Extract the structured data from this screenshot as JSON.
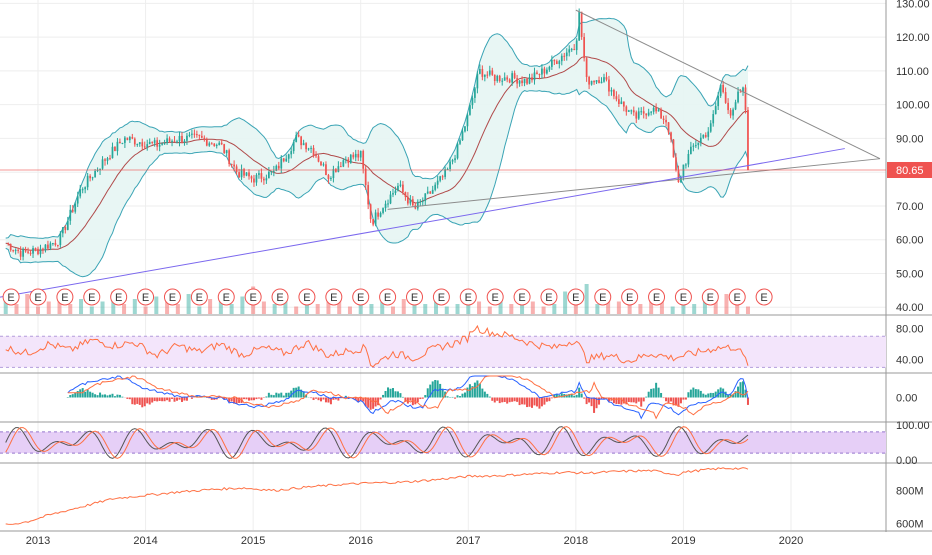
{
  "colors": {
    "up": "#26a69a",
    "down": "#ef5350",
    "bollinger_band": "#3aa4b5",
    "bollinger_fill": "#e6f5f3",
    "basis": "#b04a4a",
    "trendline_gray": "#8c8c8c",
    "trendline_purple": "#7b68ee",
    "price_line": "#ef5350",
    "rsi_line": "#ff7043",
    "rsi_band_fill": "#f3e5fb",
    "stoch_band_fill": "#e6cff7",
    "stoch_k": "#555555",
    "stoch_d": "#ff7043",
    "obv_line": "#ff7043",
    "grid": "#eeeeee",
    "pane_border": "#999999"
  },
  "chart_data": [
    {
      "type": "line",
      "pane": "price",
      "x_ticks": [
        "2013",
        "2014",
        "2015",
        "2016",
        "2017",
        "2018",
        "2019",
        "2020"
      ],
      "y_ticks": [
        "40.00",
        "50.00",
        "60.00",
        "70.00",
        "80.00",
        "90.00",
        "100.00",
        "110.00",
        "120.00",
        "130.00"
      ],
      "ylim": [
        38,
        131
      ],
      "last_price": "80.65",
      "series": [
        {
          "values_x": [
            2012.7,
            2012.85,
            2013.0,
            2013.2,
            2013.4,
            2013.6,
            2013.8,
            2013.95,
            2014.1,
            2014.3,
            2014.5,
            2014.7,
            2014.85,
            2015.0,
            2015.2,
            2015.4,
            2015.55,
            2015.7,
            2015.85,
            2016.0,
            2016.1,
            2016.2,
            2016.35,
            2016.5,
            2016.65,
            2016.8,
            2016.9,
            2017.0,
            2017.1,
            2017.25,
            2017.4,
            2017.55,
            2017.7,
            2017.85,
            2018.0,
            2018.03,
            2018.1,
            2018.25,
            2018.4,
            2018.55,
            2018.7,
            2018.85,
            2018.95,
            2019.0,
            2019.1,
            2019.25,
            2019.35,
            2019.45,
            2019.52,
            2019.57,
            2019.6
          ],
          "values_y": [
            59,
            56,
            57,
            60,
            75,
            83,
            90,
            89,
            88,
            90,
            90,
            88,
            80,
            78,
            80,
            90,
            87,
            79,
            84,
            85,
            65,
            70,
            76,
            69,
            74,
            80,
            87,
            97,
            110,
            108,
            108,
            107,
            110,
            114,
            118,
            127,
            107,
            108,
            101,
            96,
            99,
            95,
            76,
            82,
            88,
            93,
            106,
            96,
            104,
            104,
            80.65
          ]
        }
      ],
      "volume_ylim": [
        0,
        20
      ],
      "volume": [
        6,
        4,
        8,
        3,
        5,
        7,
        4,
        6,
        3,
        5,
        9,
        4,
        6,
        3,
        7,
        5,
        4,
        8,
        3,
        6,
        5,
        4,
        7,
        11,
        5,
        4,
        6,
        3,
        8,
        4,
        5,
        7,
        3,
        6,
        4,
        5,
        3,
        6,
        8,
        4,
        5,
        3,
        4,
        6,
        5,
        3,
        7,
        4,
        6,
        5,
        3,
        4,
        9,
        5,
        12,
        4,
        6,
        5,
        8,
        4,
        5,
        6,
        3,
        7,
        4,
        5,
        6,
        8,
        4,
        3
      ],
      "earnings_x": [
        2012.75,
        2013.0,
        2013.25,
        2013.5,
        2013.75,
        2014.0,
        2014.25,
        2014.5,
        2014.75,
        2015.0,
        2015.25,
        2015.5,
        2015.75,
        2016.0,
        2016.25,
        2016.5,
        2016.75,
        2017.0,
        2017.25,
        2017.5,
        2017.75,
        2018.0,
        2018.25,
        2018.5,
        2018.75,
        2019.0,
        2019.25,
        2019.5,
        2019.75
      ],
      "earnings_label": "E"
    },
    {
      "type": "line",
      "pane": "rsi",
      "y_ticks": [
        "40.00",
        "80.00"
      ],
      "ylim": [
        24,
        96
      ],
      "bands": [
        30,
        70
      ],
      "values_x": [
        2012.7,
        2012.9,
        2013.1,
        2013.3,
        2013.5,
        2013.7,
        2013.9,
        2014.1,
        2014.3,
        2014.5,
        2014.7,
        2014.9,
        2015.1,
        2015.3,
        2015.5,
        2015.7,
        2015.9,
        2016.05,
        2016.1,
        2016.3,
        2016.5,
        2016.7,
        2016.85,
        2017.0,
        2017.05,
        2017.2,
        2017.4,
        2017.6,
        2017.8,
        2018.0,
        2018.1,
        2018.3,
        2018.5,
        2018.7,
        2018.9,
        2019.1,
        2019.3,
        2019.5,
        2019.6
      ],
      "values_y": [
        55,
        48,
        60,
        52,
        65,
        58,
        62,
        45,
        58,
        50,
        60,
        46,
        55,
        48,
        62,
        45,
        52,
        55,
        32,
        48,
        42,
        55,
        60,
        68,
        82,
        75,
        70,
        60,
        55,
        66,
        40,
        46,
        38,
        48,
        42,
        48,
        55,
        56,
        35
      ]
    },
    {
      "type": "bar",
      "pane": "macd",
      "y_ticks": [
        "0.00"
      ],
      "ylim": [
        -6,
        6
      ]
    },
    {
      "type": "line",
      "pane": "stoch",
      "y_ticks": [
        "100.00",
        "0.00"
      ],
      "ylim": [
        -5,
        105
      ],
      "bands": [
        20,
        80
      ]
    },
    {
      "type": "line",
      "pane": "obv",
      "y_ticks": [
        "600M",
        "800M"
      ],
      "ylim": [
        560,
        960
      ],
      "values_x": [
        2012.7,
        2012.9,
        2013.1,
        2013.4,
        2013.7,
        2014.0,
        2014.3,
        2014.6,
        2014.9,
        2015.2,
        2015.5,
        2015.8,
        2016.1,
        2016.4,
        2016.7,
        2017.0,
        2017.3,
        2017.6,
        2017.9,
        2018.1,
        2018.4,
        2018.7,
        2018.95,
        2019.0,
        2019.2,
        2019.4,
        2019.6
      ],
      "values_y": [
        590,
        610,
        650,
        700,
        750,
        770,
        790,
        805,
        815,
        800,
        820,
        835,
        845,
        850,
        865,
        885,
        890,
        900,
        910,
        905,
        915,
        920,
        895,
        910,
        925,
        935,
        930
      ]
    }
  ]
}
